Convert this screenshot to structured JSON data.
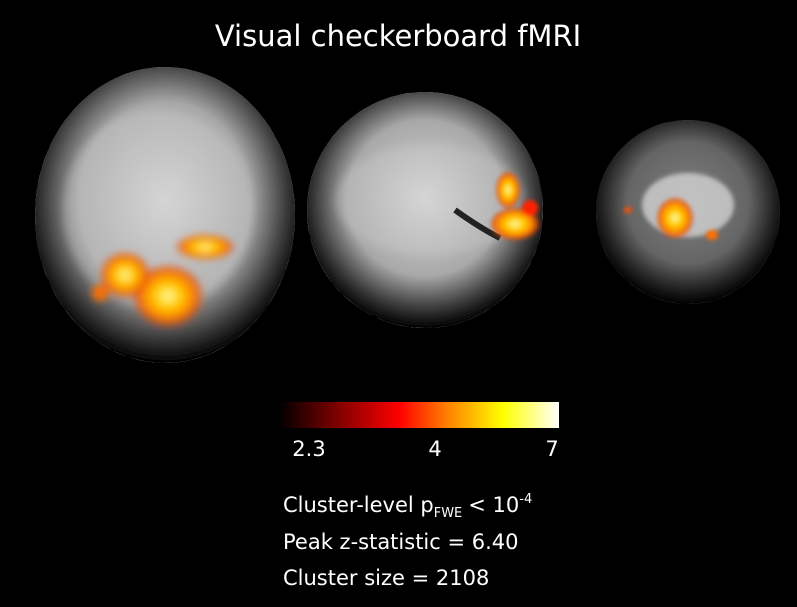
{
  "title": "Visual checkerboard fMRI",
  "colorbar": {
    "labels": [
      "2.3",
      "4",
      "7"
    ]
  },
  "stats": {
    "cluster_level": {
      "text": "Cluster-level p",
      "subscript": "FWE",
      "relation": "< 10",
      "superscript": "-4"
    },
    "peak": "Peak z-statistic = 6.40",
    "size": "Cluster size = 2108"
  }
}
